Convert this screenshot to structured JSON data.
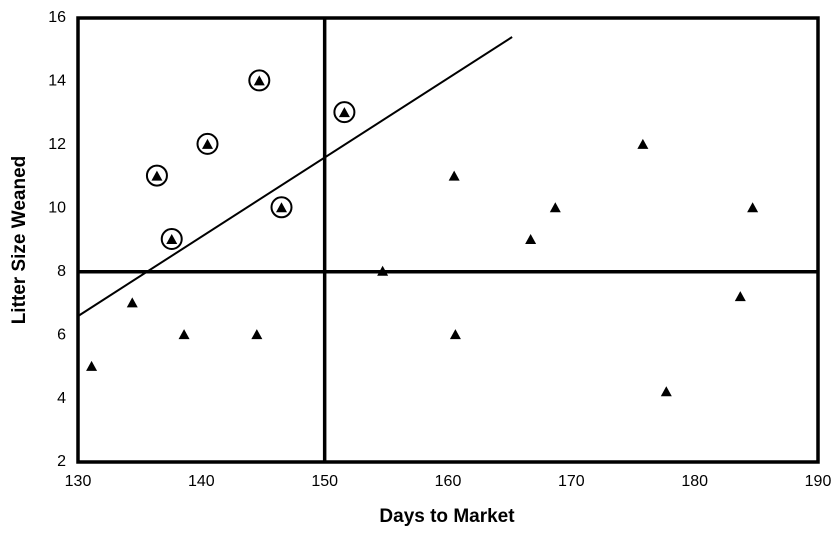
{
  "chart_data": {
    "type": "scatter",
    "x_label": "Days to Market",
    "y_label": "Litter Size Weaned",
    "xlim": [
      130,
      190
    ],
    "xticks": [
      130,
      140,
      150,
      160,
      170,
      180,
      190
    ],
    "ylim": [
      2,
      16
    ],
    "yticks": [
      2,
      4,
      6,
      8,
      10,
      12,
      14,
      16
    ],
    "grid": false,
    "color": "#000000",
    "series": [
      {
        "marker": "circled-triangle",
        "x": [
          136.4,
          137.6,
          140.5,
          144.7,
          146.5,
          151.6
        ],
        "values": [
          11,
          9,
          12,
          14,
          10,
          13
        ]
      },
      {
        "marker": "triangle",
        "x": [
          131.1,
          134.4,
          138.6,
          144.5,
          154.7,
          160.5,
          160.6,
          166.7,
          168.7,
          175.8,
          177.7,
          183.7,
          184.7
        ],
        "values": [
          5,
          7,
          6,
          6,
          8,
          11,
          6,
          9,
          10,
          12,
          4.2,
          7.2,
          10
        ]
      }
    ],
    "trend_line": {
      "x": [
        130,
        165.2
      ],
      "values": [
        6.6,
        15.4
      ]
    },
    "ref_lines": {
      "x": 150,
      "y": 8
    }
  }
}
